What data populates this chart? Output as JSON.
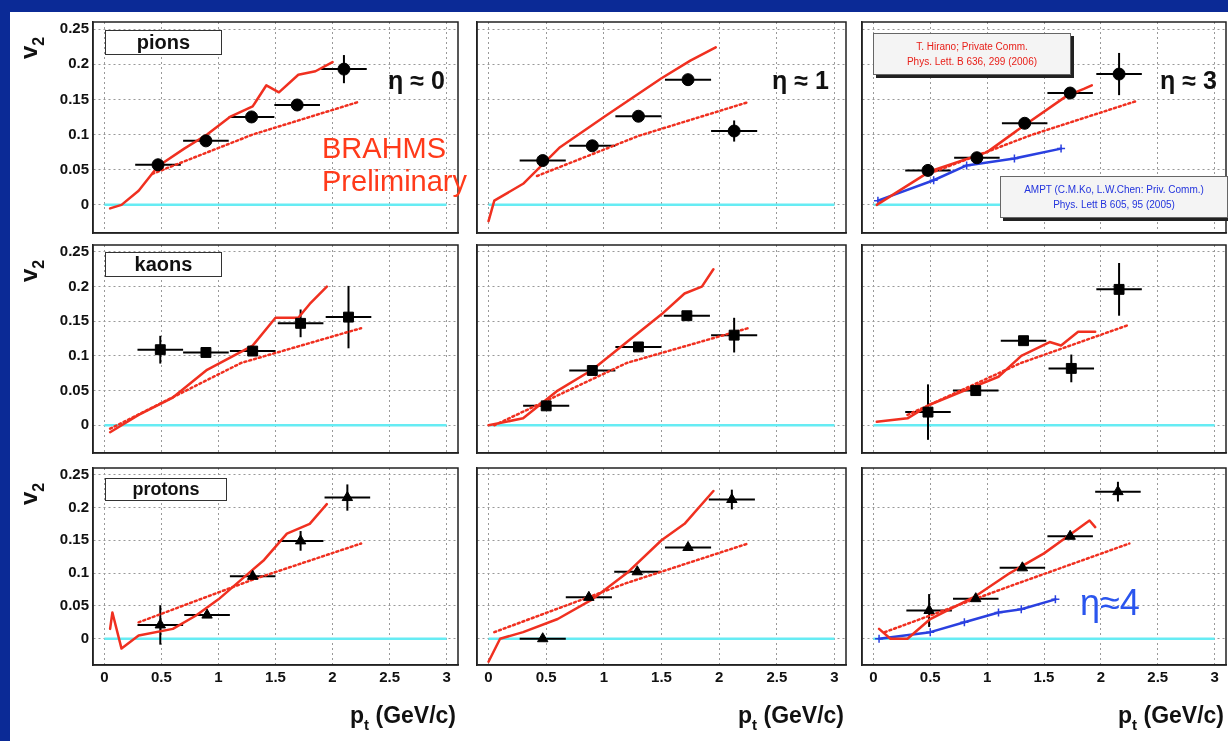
{
  "chart_data": [
    {
      "type": "scatter",
      "ylabel": "v$_{2}$",
      "annotations": [
        "pions",
        "η ≈ 0",
        "BRAHMS Preliminary"
      ],
      "xlim": [
        -0.1,
        3.1
      ],
      "xticks": [
        0,
        0.5,
        1,
        1.5,
        2,
        2.5,
        3
      ],
      "ylim": [
        -0.04,
        0.26
      ],
      "yticks": [
        0,
        0.05,
        0.1,
        0.15,
        0.2,
        0.25
      ],
      "grid": true,
      "tick_labels": "y",
      "ref_lines": [
        {
          "axis": "y",
          "value": 0,
          "color": "#66ecf4"
        }
      ],
      "series": [
        {
          "type": "line",
          "color": "#f03020",
          "x": [
            0.05,
            0.15,
            0.3,
            0.47,
            0.7,
            0.9,
            1.1,
            1.3,
            1.42,
            1.53,
            1.7,
            1.85,
            2.0
          ],
          "values": [
            -0.005,
            0.0,
            0.02,
            0.055,
            0.08,
            0.1,
            0.125,
            0.14,
            0.17,
            0.16,
            0.185,
            0.19,
            0.203
          ]
        },
        {
          "type": "line",
          "color": "#f03020",
          "line_style": "dotted",
          "x": [
            0.42,
            1.3,
            2.22
          ],
          "values": [
            0.044,
            0.1,
            0.146
          ]
        },
        {
          "color": "#000000",
          "marker": "circle",
          "x": [
            0.47,
            0.89,
            1.29,
            1.69,
            2.1
          ],
          "values": [
            0.057,
            0.091,
            0.125,
            0.142,
            0.193
          ],
          "xerrors": [
            0.2,
            0.2,
            0.2,
            0.2,
            0.2
          ],
          "errors": [
            null,
            null,
            null,
            null,
            0.02
          ]
        }
      ]
    },
    {
      "type": "scatter",
      "annotations": [
        "η ≈ 1"
      ],
      "xlim": [
        -0.1,
        3.1
      ],
      "xticks": [
        0,
        0.5,
        1,
        1.5,
        2,
        2.5,
        3
      ],
      "ylim": [
        -0.04,
        0.26
      ],
      "yticks": [
        0,
        0.05,
        0.1,
        0.15,
        0.2,
        0.25
      ],
      "grid": true,
      "tick_labels": false,
      "ref_lines": [
        {
          "axis": "y",
          "value": 0,
          "color": "#66ecf4"
        }
      ],
      "series": [
        {
          "type": "line",
          "color": "#f03020",
          "x": [
            0.0,
            0.05,
            0.3,
            0.62,
            1.02,
            1.5,
            1.75,
            1.97
          ],
          "values": [
            -0.023,
            0.006,
            0.03,
            0.082,
            0.127,
            0.18,
            0.205,
            0.224
          ]
        },
        {
          "type": "line",
          "color": "#f03020",
          "line_style": "dotted",
          "x": [
            0.42,
            1.3,
            2.25
          ],
          "values": [
            0.041,
            0.098,
            0.146
          ]
        },
        {
          "color": "#000000",
          "marker": "circle",
          "x": [
            0.47,
            0.9,
            1.3,
            1.73,
            2.13
          ],
          "values": [
            0.063,
            0.084,
            0.126,
            0.178,
            0.105
          ],
          "xerrors": [
            0.2,
            0.2,
            0.2,
            0.2,
            0.2
          ],
          "errors": [
            null,
            null,
            null,
            null,
            0.015
          ]
        }
      ]
    },
    {
      "type": "scatter",
      "annotations": [
        "η ≈ 3",
        "T. Hirano; Private Comm.",
        "Phys. Lett. B 636, 299 (2006)",
        "AMPT (C.M.Ko, L.W.Chen: Priv. Comm.)",
        "Phys. Lett B 605, 95 (2005)"
      ],
      "xlim": [
        -0.1,
        3.1
      ],
      "xticks": [
        0,
        0.5,
        1,
        1.5,
        2,
        2.5,
        3
      ],
      "ylim": [
        -0.04,
        0.26
      ],
      "yticks": [
        0,
        0.05,
        0.1,
        0.15,
        0.2,
        0.25
      ],
      "grid": true,
      "tick_labels": false,
      "ref_lines": [
        {
          "axis": "y",
          "value": 0,
          "color": "#66ecf4"
        }
      ],
      "series": [
        {
          "type": "line",
          "color": "#f03020",
          "x": [
            0.03,
            0.5,
            1.0,
            1.3,
            1.7,
            1.85,
            1.92
          ],
          "values": [
            0.0,
            0.048,
            0.075,
            0.11,
            0.155,
            0.165,
            0.17
          ]
        },
        {
          "type": "line",
          "color": "#f03020",
          "line_style": "dotted",
          "x": [
            0.5,
            1.4,
            2.3
          ],
          "values": [
            0.045,
            0.1,
            0.147
          ]
        },
        {
          "type": "line",
          "color": "#2a40e0",
          "marker": "cross",
          "x": [
            0.04,
            0.53,
            0.82,
            1.24,
            1.65
          ],
          "values": [
            0.006,
            0.035,
            0.056,
            0.066,
            0.08
          ]
        },
        {
          "color": "#000000",
          "marker": "circle",
          "x": [
            0.48,
            0.91,
            1.33,
            1.73,
            2.16
          ],
          "values": [
            0.049,
            0.067,
            0.116,
            0.159,
            0.186
          ],
          "xerrors": [
            0.2,
            0.2,
            0.2,
            0.2,
            0.2
          ],
          "errors": [
            null,
            null,
            null,
            null,
            0.03
          ]
        }
      ]
    },
    {
      "type": "scatter",
      "ylabel": "v$_{2}$",
      "annotations": [
        "kaons"
      ],
      "xlim": [
        -0.1,
        3.1
      ],
      "xticks": [
        0,
        0.5,
        1,
        1.5,
        2,
        2.5,
        3
      ],
      "ylim": [
        -0.04,
        0.26
      ],
      "yticks": [
        0,
        0.05,
        0.1,
        0.15,
        0.2,
        0.25
      ],
      "grid": true,
      "tick_labels": "y",
      "ref_lines": [
        {
          "axis": "y",
          "value": 0,
          "color": "#66ecf4"
        }
      ],
      "series": [
        {
          "type": "line",
          "color": "#f03020",
          "x": [
            0.05,
            0.3,
            0.6,
            0.9,
            1.3,
            1.5,
            1.7,
            1.8,
            1.95
          ],
          "values": [
            -0.01,
            0.015,
            0.04,
            0.08,
            0.115,
            0.155,
            0.155,
            0.175,
            0.2
          ]
        },
        {
          "type": "line",
          "color": "#f03020",
          "line_style": "dotted",
          "x": [
            0.05,
            1.2,
            2.25
          ],
          "values": [
            -0.005,
            0.09,
            0.14
          ]
        },
        {
          "color": "#000000",
          "marker": "square",
          "x": [
            0.49,
            0.89,
            1.3,
            1.72,
            2.14
          ],
          "values": [
            0.109,
            0.105,
            0.107,
            0.147,
            0.156
          ],
          "xerrors": [
            0.2,
            0.2,
            0.2,
            0.2,
            0.2
          ],
          "errors": [
            0.02,
            null,
            null,
            0.02,
            0.045
          ]
        }
      ]
    },
    {
      "type": "scatter",
      "xlim": [
        -0.1,
        3.1
      ],
      "xticks": [
        0,
        0.5,
        1,
        1.5,
        2,
        2.5,
        3
      ],
      "ylim": [
        -0.04,
        0.26
      ],
      "yticks": [
        0,
        0.05,
        0.1,
        0.15,
        0.2,
        0.25
      ],
      "grid": true,
      "tick_labels": false,
      "ref_lines": [
        {
          "axis": "y",
          "value": 0,
          "color": "#66ecf4"
        }
      ],
      "series": [
        {
          "type": "line",
          "color": "#f03020",
          "x": [
            0.0,
            0.3,
            0.6,
            0.9,
            1.2,
            1.5,
            1.7,
            1.85,
            1.95
          ],
          "values": [
            0.0,
            0.01,
            0.05,
            0.08,
            0.12,
            0.16,
            0.19,
            0.2,
            0.225
          ]
        },
        {
          "type": "line",
          "color": "#f03020",
          "line_style": "dotted",
          "x": [
            0.05,
            1.2,
            2.25
          ],
          "values": [
            0.0,
            0.09,
            0.14
          ]
        },
        {
          "color": "#000000",
          "marker": "square",
          "x": [
            0.5,
            0.9,
            1.3,
            1.72,
            2.13
          ],
          "values": [
            0.028,
            0.079,
            0.113,
            0.158,
            0.13
          ],
          "xerrors": [
            0.2,
            0.2,
            0.2,
            0.2,
            0.2
          ],
          "errors": [
            null,
            null,
            null,
            null,
            0.025
          ]
        }
      ]
    },
    {
      "type": "scatter",
      "xlim": [
        -0.1,
        3.1
      ],
      "xticks": [
        0,
        0.5,
        1,
        1.5,
        2,
        2.5,
        3
      ],
      "ylim": [
        -0.04,
        0.26
      ],
      "yticks": [
        0,
        0.05,
        0.1,
        0.15,
        0.2,
        0.25
      ],
      "grid": true,
      "tick_labels": false,
      "ref_lines": [
        {
          "axis": "y",
          "value": 0,
          "color": "#66ecf4"
        }
      ],
      "series": [
        {
          "type": "line",
          "color": "#f03020",
          "x": [
            0.03,
            0.3,
            0.5,
            0.8,
            1.1,
            1.3,
            1.55,
            1.65,
            1.8,
            1.95
          ],
          "values": [
            0.005,
            0.01,
            0.03,
            0.05,
            0.07,
            0.1,
            0.12,
            0.115,
            0.135,
            0.135
          ]
        },
        {
          "type": "line",
          "color": "#f03020",
          "line_style": "dotted",
          "x": [
            0.3,
            1.3,
            2.25
          ],
          "values": [
            0.015,
            0.09,
            0.145
          ]
        },
        {
          "color": "#000000",
          "marker": "square",
          "x": [
            0.48,
            0.9,
            1.32,
            1.74,
            2.16
          ],
          "values": [
            0.019,
            0.05,
            0.122,
            0.082,
            0.196
          ],
          "xerrors": [
            0.2,
            0.2,
            0.2,
            0.2,
            0.2
          ],
          "errors": [
            0.04,
            null,
            null,
            0.02,
            0.038
          ]
        }
      ]
    },
    {
      "type": "scatter",
      "ylabel": "v$_{2}$",
      "xlabel": "p$_{t}$ (GeV/c)",
      "annotations": [
        "protons"
      ],
      "xlim": [
        -0.1,
        3.1
      ],
      "xticks": [
        0,
        0.5,
        1,
        1.5,
        2,
        2.5,
        3
      ],
      "ylim": [
        -0.04,
        0.26
      ],
      "yticks": [
        0,
        0.05,
        0.1,
        0.15,
        0.2,
        0.25
      ],
      "grid": true,
      "ref_lines": [
        {
          "axis": "y",
          "value": 0,
          "color": "#66ecf4"
        }
      ],
      "series": [
        {
          "type": "line",
          "color": "#f03020",
          "x": [
            0.05,
            0.07,
            0.15,
            0.3,
            0.6,
            0.8,
            1.0,
            1.2,
            1.4,
            1.6,
            1.8,
            1.95
          ],
          "values": [
            0.015,
            0.04,
            -0.015,
            0.005,
            0.015,
            0.035,
            0.06,
            0.09,
            0.12,
            0.16,
            0.175,
            0.205
          ]
        },
        {
          "type": "line",
          "color": "#f03020",
          "line_style": "dotted",
          "x": [
            0.3,
            1.3,
            2.25
          ],
          "values": [
            0.025,
            0.09,
            0.145
          ]
        },
        {
          "color": "#000000",
          "marker": "triangle",
          "x": [
            0.49,
            0.9,
            1.3,
            1.72,
            2.13
          ],
          "values": [
            0.021,
            0.036,
            0.095,
            0.149,
            0.215
          ],
          "xerrors": [
            0.2,
            0.2,
            0.2,
            0.2,
            0.2
          ],
          "errors": [
            0.03,
            null,
            null,
            0.015,
            0.02
          ]
        }
      ]
    },
    {
      "type": "scatter",
      "xlabel": "p$_{t}$ (GeV/c)",
      "xlim": [
        -0.1,
        3.1
      ],
      "xticks": [
        0,
        0.5,
        1,
        1.5,
        2,
        2.5,
        3
      ],
      "ylim": [
        -0.04,
        0.26
      ],
      "yticks": [
        0,
        0.05,
        0.1,
        0.15,
        0.2,
        0.25
      ],
      "grid": true,
      "tick_labels": "x",
      "ref_lines": [
        {
          "axis": "y",
          "value": 0,
          "color": "#66ecf4"
        }
      ],
      "series": [
        {
          "type": "line",
          "color": "#f03020",
          "x": [
            0.0,
            0.1,
            0.3,
            0.6,
            0.9,
            1.2,
            1.5,
            1.7,
            1.95
          ],
          "values": [
            -0.035,
            0.0,
            0.01,
            0.03,
            0.06,
            0.1,
            0.15,
            0.175,
            0.225
          ]
        },
        {
          "type": "line",
          "color": "#f03020",
          "line_style": "dotted",
          "x": [
            0.05,
            1.2,
            2.25
          ],
          "values": [
            0.01,
            0.085,
            0.145
          ]
        },
        {
          "color": "#000000",
          "marker": "triangle",
          "x": [
            0.47,
            0.87,
            1.29,
            1.73,
            2.11
          ],
          "values": [
            0.0,
            0.063,
            0.102,
            0.139,
            0.212
          ],
          "xerrors": [
            0.2,
            0.2,
            0.2,
            0.2,
            0.2
          ],
          "errors": [
            null,
            null,
            null,
            null,
            0.015
          ]
        }
      ]
    },
    {
      "type": "scatter",
      "xlabel": "p$_{t}$ (GeV/c)",
      "annotations": [
        "η≈4"
      ],
      "xlim": [
        -0.1,
        3.1
      ],
      "xticks": [
        0,
        0.5,
        1,
        1.5,
        2,
        2.5,
        3
      ],
      "ylim": [
        -0.04,
        0.26
      ],
      "yticks": [
        0,
        0.05,
        0.1,
        0.15,
        0.2,
        0.25
      ],
      "grid": true,
      "tick_labels": "x",
      "ref_lines": [
        {
          "axis": "y",
          "value": 0,
          "color": "#66ecf4"
        }
      ],
      "series": [
        {
          "type": "line",
          "color": "#f03020",
          "x": [
            0.05,
            0.15,
            0.3,
            0.5,
            0.9,
            1.2,
            1.5,
            1.7,
            1.9,
            1.95
          ],
          "values": [
            0.015,
            0.0,
            0.0,
            0.03,
            0.065,
            0.1,
            0.13,
            0.155,
            0.18,
            0.17
          ]
        },
        {
          "type": "line",
          "color": "#f03020",
          "line_style": "dotted",
          "x": [
            0.1,
            1.2,
            2.25
          ],
          "values": [
            0.01,
            0.08,
            0.145
          ]
        },
        {
          "type": "line",
          "color": "#2a40e0",
          "marker": "cross",
          "x": [
            0.05,
            0.5,
            0.8,
            1.1,
            1.3,
            1.6
          ],
          "values": [
            0.0,
            0.01,
            0.025,
            0.04,
            0.045,
            0.06
          ]
        },
        {
          "color": "#000000",
          "marker": "triangle",
          "x": [
            0.49,
            0.9,
            1.31,
            1.73,
            2.15
          ],
          "values": [
            0.043,
            0.061,
            0.108,
            0.156,
            0.224
          ],
          "xerrors": [
            0.2,
            0.2,
            0.2,
            0.2,
            0.2
          ],
          "errors": [
            0.025,
            null,
            null,
            null,
            0.015
          ]
        }
      ]
    }
  ]
}
